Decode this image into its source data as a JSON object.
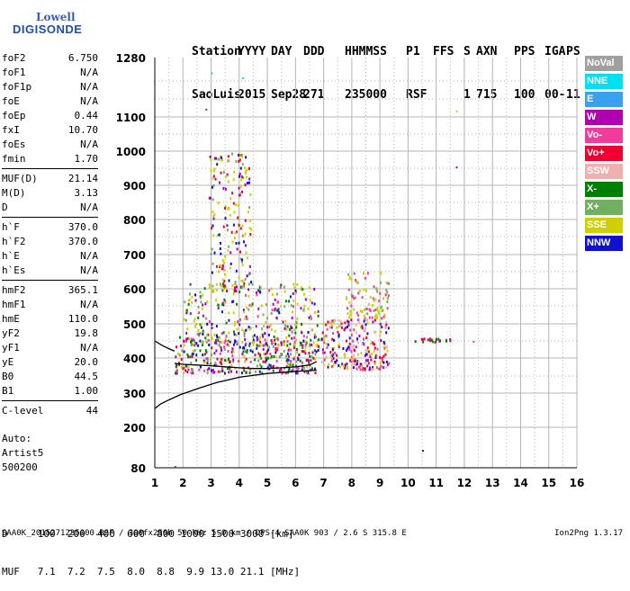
{
  "logo": {
    "line1": "Lowell",
    "line2": "DIGISONDE"
  },
  "header": {
    "row1": [
      "Station",
      "YYYY",
      "DAY",
      "DDD",
      "HHMMSS",
      "P1",
      "FFS",
      "S",
      "AXN",
      "PPS",
      "IGA",
      "PS"
    ],
    "row2": [
      "SaoLuis",
      "2015",
      "Sep28",
      "271",
      "235000",
      "RSF",
      "",
      "1",
      "715",
      "100",
      "00-",
      "11"
    ]
  },
  "params": [
    {
      "label": "foF2",
      "value": "6.750"
    },
    {
      "label": "foF1",
      "value": "N/A"
    },
    {
      "label": "foF1p",
      "value": "N/A"
    },
    {
      "label": "foE",
      "value": "N/A"
    },
    {
      "label": "foEp",
      "value": "0.44"
    },
    {
      "label": "fxI",
      "value": "10.70"
    },
    {
      "label": "foEs",
      "value": "N/A"
    },
    {
      "label": "fmin",
      "value": "1.70"
    },
    {
      "label": "MUF(D)",
      "value": "21.14",
      "sep_before": true
    },
    {
      "label": "M(D)",
      "value": "3.13"
    },
    {
      "label": "D",
      "value": "N/A"
    },
    {
      "label": "h`F",
      "value": "370.0",
      "sep_before": true
    },
    {
      "label": "h`F2",
      "value": "370.0"
    },
    {
      "label": "h`E",
      "value": "N/A"
    },
    {
      "label": "h`Es",
      "value": "N/A"
    },
    {
      "label": "hmF2",
      "value": "365.1",
      "sep_before": true
    },
    {
      "label": "hmF1",
      "value": "N/A"
    },
    {
      "label": "hmE",
      "value": "110.0"
    },
    {
      "label": "yF2",
      "value": "19.8"
    },
    {
      "label": "yF1",
      "value": "N/A"
    },
    {
      "label": "yE",
      "value": "20.0"
    },
    {
      "label": "B0",
      "value": "44.5"
    },
    {
      "label": "B1",
      "value": "1.00"
    },
    {
      "label": "C-level",
      "value": "44",
      "sep_before": true
    }
  ],
  "auto": {
    "line1": "Auto:",
    "line2": "Artist5",
    "line3": "500200"
  },
  "legend": [
    {
      "label": "NoVal",
      "color": "#a0a0a0"
    },
    {
      "label": "NNE",
      "color": "#00e0f0"
    },
    {
      "label": "E",
      "color": "#3aa0f0"
    },
    {
      "label": "W",
      "color": "#b000b0"
    },
    {
      "label": "Vo-",
      "color": "#f03c9c"
    },
    {
      "label": "Vo+",
      "color": "#f00030"
    },
    {
      "label": "SSW",
      "color": "#f0b0b0"
    },
    {
      "label": "X-",
      "color": "#008000"
    },
    {
      "label": "X+",
      "color": "#70b060"
    },
    {
      "label": "SSE",
      "color": "#d0d000"
    },
    {
      "label": "NNW",
      "color": "#1010d0"
    }
  ],
  "footer": {
    "d_line": "D     100  200  400  600  800 1000 1500 3000 [km]",
    "muf_line": "MUF   7.1  7.2  7.5  8.0  8.8  9.9 13.0 21.1 [MHz]",
    "file_line": "SAA0K_2015271235000.RSF / 300fx256h 50 kHz 5.0 km / DPS-4 SAA0K 903 / 2.6 S 315.8 E",
    "version": "Ion2Png 1.3.17"
  },
  "chart_data": {
    "type": "scatter",
    "x_ticks": [
      "1",
      "2",
      "3",
      "4",
      "5",
      "6",
      "7",
      "8",
      "9",
      "10",
      "11",
      "12",
      "13",
      "14",
      "15",
      "16"
    ],
    "y_ticks": [
      "80",
      "200",
      "300",
      "400",
      "500",
      "600",
      "700",
      "800",
      "900",
      "1000",
      "1100",
      "1280"
    ],
    "xlim": [
      1,
      16
    ],
    "y_tick_values": [
      80,
      200,
      300,
      400,
      500,
      600,
      700,
      800,
      900,
      1000,
      1100,
      1280
    ],
    "grid": true,
    "traces": [
      {
        "name": "ordinary_trace",
        "freq": [
          1.7,
          2.0,
          2.5,
          3.0,
          3.5,
          4.0,
          4.5,
          5.0,
          5.5,
          6.0,
          6.5,
          6.75
        ],
        "height": [
          385,
          382,
          380,
          378,
          375,
          372,
          370,
          370,
          372,
          375,
          380,
          390
        ]
      },
      {
        "name": "profile",
        "freq": [
          1.0,
          1.2,
          1.5,
          1.9,
          2.5,
          3.2,
          4.0,
          5.0,
          6.0,
          6.75
        ],
        "height": [
          255,
          268,
          280,
          295,
          312,
          330,
          345,
          356,
          362,
          365
        ]
      },
      {
        "name": "lower_trace",
        "freq": [
          1.0,
          1.3,
          1.7
        ],
        "height": [
          450,
          435,
          420
        ]
      }
    ],
    "clusters": [
      {
        "fmin": 1.7,
        "fmax": 6.8,
        "hmin": 360,
        "hmax": 470,
        "n": 360,
        "colors": [
          "#b000b0",
          "#f03c9c",
          "#f00030",
          "#008000",
          "#1010d0",
          "#d0d000",
          "#70b060"
        ]
      },
      {
        "fmin": 2.0,
        "fmax": 6.8,
        "hmin": 440,
        "hmax": 620,
        "n": 320,
        "colors": [
          "#d0d000",
          "#d0d000",
          "#70b060",
          "#b000b0",
          "#f03c9c",
          "#008000",
          "#1010d0"
        ]
      },
      {
        "fmin": 2.9,
        "fmax": 4.4,
        "hmin": 600,
        "hmax": 1000,
        "n": 190,
        "colors": [
          "#d0d000",
          "#d0d000",
          "#d0d000",
          "#1010d0",
          "#70b060",
          "#b000b0",
          "#f00030"
        ]
      },
      {
        "fmin": 6.9,
        "fmax": 9.3,
        "hmin": 370,
        "hmax": 520,
        "n": 240,
        "colors": [
          "#f00030",
          "#f03c9c",
          "#b000b0",
          "#f0b0b0",
          "#1010d0",
          "#d0d000"
        ]
      },
      {
        "fmin": 7.7,
        "fmax": 9.3,
        "hmin": 520,
        "hmax": 650,
        "n": 90,
        "colors": [
          "#d0d000",
          "#d0d000",
          "#70b060",
          "#f03c9c"
        ]
      },
      {
        "fmin": 10.2,
        "fmax": 11.5,
        "hmin": 450,
        "hmax": 460,
        "n": 20,
        "colors": [
          "#f00030",
          "#008000",
          "#b000b0"
        ]
      }
    ],
    "outliers": [
      {
        "f": 11.7,
        "h": 1120,
        "color": "#d0d000"
      },
      {
        "f": 11.7,
        "h": 955,
        "color": "#b000b0"
      },
      {
        "f": 10.5,
        "h": 133,
        "color": "#1010d0"
      },
      {
        "f": 2.8,
        "h": 1125,
        "color": "#b000b0"
      },
      {
        "f": 3.0,
        "h": 1235,
        "color": "#00e0f0"
      },
      {
        "f": 4.1,
        "h": 1220,
        "color": "#00e0f0"
      },
      {
        "f": 1.7,
        "h": 85,
        "color": "#b000b0"
      },
      {
        "f": 12.3,
        "h": 450,
        "color": "#f03c9c"
      }
    ]
  }
}
